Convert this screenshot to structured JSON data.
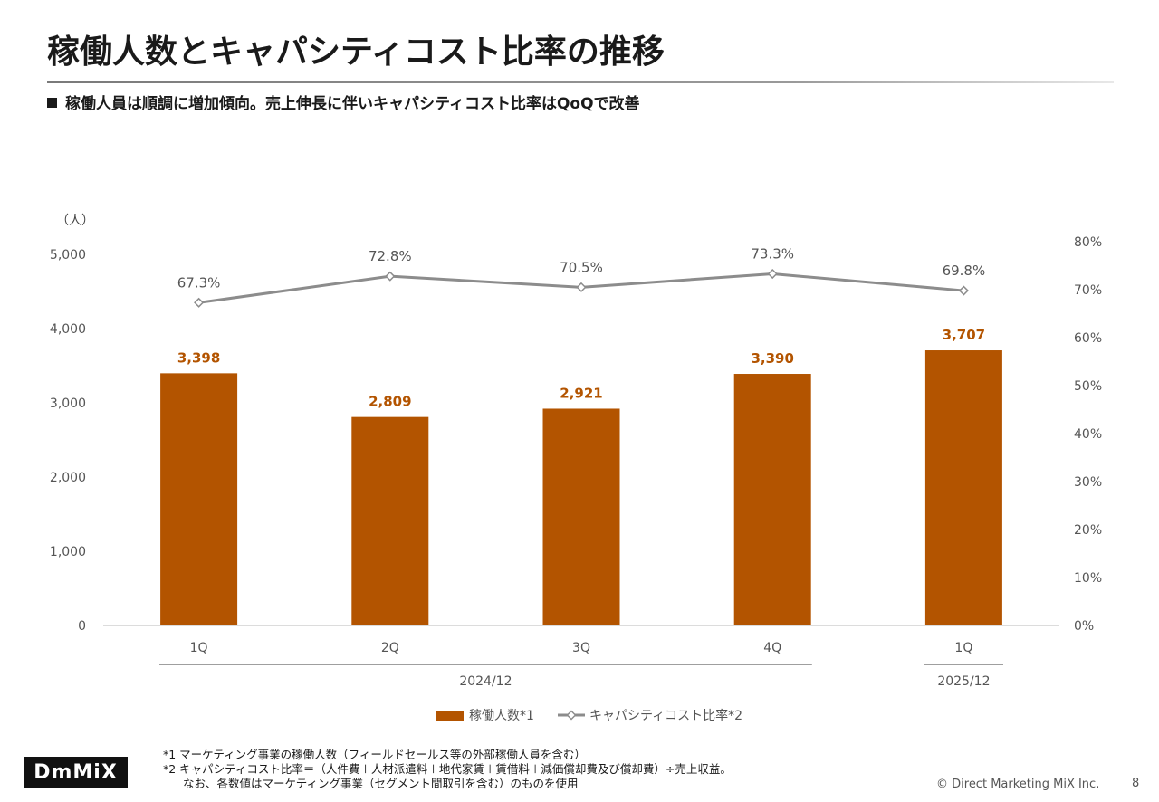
{
  "slide": {
    "title": "稼働人数とキャパシティコスト比率の推移",
    "subtitle": "稼働人員は順調に増加傾向。売上伸長に伴いキャパシティコスト比率はQoQで改善",
    "page_number": "8",
    "copyright": "© Direct Marketing MiX Inc.",
    "logo_text": "DmMiX"
  },
  "footnotes": [
    "*1 マーケティング事業の稼働人数（フィールドセールス等の外部稼働人員を含む）",
    "*2 キャパシティコスト比率＝（人件費＋人材派遣料＋地代家賃＋賃借料＋減価償却費及び償却費）÷売上収益。",
    "なお、各数値はマーケティング事業（セグメント間取引を含む）のものを使用"
  ],
  "chart_data": {
    "type": "bar+line",
    "unit_label": "（人）",
    "categories": [
      "1Q",
      "2Q",
      "3Q",
      "4Q",
      "1Q"
    ],
    "groups": [
      {
        "label": "2024/12",
        "from": 0,
        "to": 3
      },
      {
        "label": "2025/12",
        "from": 4,
        "to": 4
      }
    ],
    "series": [
      {
        "name": "稼働人数*1",
        "type": "bar",
        "axis": "left",
        "color": "#b35400",
        "values": [
          3398,
          2809,
          2921,
          3390,
          3707
        ],
        "labels": [
          "3,398",
          "2,809",
          "2,921",
          "3,390",
          "3,707"
        ]
      },
      {
        "name": "キャパシティコスト比率*2",
        "type": "line",
        "axis": "right",
        "color": "#8c8c8c",
        "values": [
          67.3,
          72.8,
          70.5,
          73.3,
          69.8
        ],
        "labels": [
          "67.3%",
          "72.8%",
          "70.5%",
          "73.3%",
          "69.8%"
        ]
      }
    ],
    "left_axis": {
      "ylim": [
        0,
        5000
      ],
      "ticks": [
        0,
        1000,
        2000,
        3000,
        4000,
        5000
      ],
      "tick_labels": [
        "0",
        "1,000",
        "2,000",
        "3,000",
        "4,000",
        "5,000"
      ]
    },
    "right_axis": {
      "ylim": [
        0,
        80
      ],
      "ticks": [
        0,
        10,
        20,
        30,
        40,
        50,
        60,
        70,
        80
      ],
      "tick_labels": [
        "0%",
        "10%",
        "20%",
        "30%",
        "40%",
        "50%",
        "60%",
        "70%",
        "80%"
      ]
    },
    "legend_position": "bottom-center",
    "label_color": "#b35400"
  }
}
